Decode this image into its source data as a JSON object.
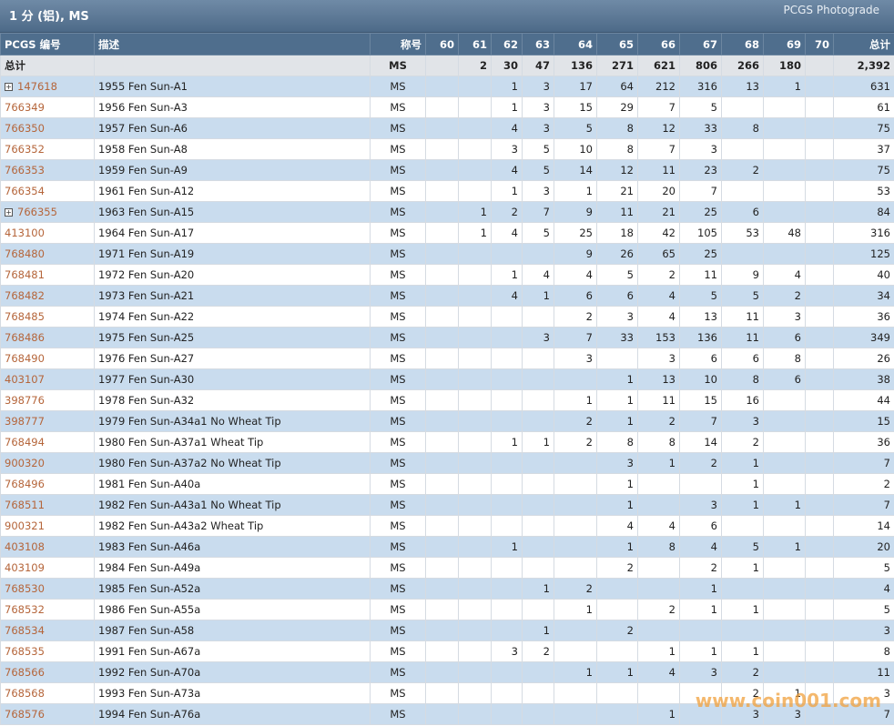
{
  "header": {
    "title": "1 分 (铝), MS",
    "subtitle": "PCGS Photograde"
  },
  "table": {
    "columns": [
      "PCGS 编号",
      "描述",
      "称号",
      "60",
      "61",
      "62",
      "63",
      "64",
      "65",
      "66",
      "67",
      "68",
      "69",
      "70",
      "总计"
    ],
    "total": [
      "总计",
      null,
      "MS",
      null,
      2,
      30,
      47,
      136,
      271,
      621,
      806,
      266,
      180,
      null,
      "2,392"
    ],
    "rows": [
      [
        "147618",
        "1955 Fen Sun-A1",
        "MS",
        null,
        null,
        1,
        3,
        17,
        64,
        212,
        316,
        13,
        1,
        null,
        631
      ],
      [
        "766349",
        "1956 Fen Sun-A3",
        "MS",
        null,
        null,
        1,
        3,
        15,
        29,
        7,
        5,
        null,
        null,
        null,
        61
      ],
      [
        "766350",
        "1957 Fen Sun-A6",
        "MS",
        null,
        null,
        4,
        3,
        5,
        8,
        12,
        33,
        8,
        null,
        null,
        75
      ],
      [
        "766352",
        "1958 Fen Sun-A8",
        "MS",
        null,
        null,
        3,
        5,
        10,
        8,
        7,
        3,
        null,
        null,
        null,
        37
      ],
      [
        "766353",
        "1959 Fen Sun-A9",
        "MS",
        null,
        null,
        4,
        5,
        14,
        12,
        11,
        23,
        2,
        null,
        null,
        75
      ],
      [
        "766354",
        "1961 Fen Sun-A12",
        "MS",
        null,
        null,
        1,
        3,
        1,
        21,
        20,
        7,
        null,
        null,
        null,
        53
      ],
      [
        "766355",
        "1963 Fen Sun-A15",
        "MS",
        null,
        1,
        2,
        7,
        9,
        11,
        21,
        25,
        6,
        null,
        null,
        84
      ],
      [
        "413100",
        "1964 Fen Sun-A17",
        "MS",
        null,
        1,
        4,
        5,
        25,
        18,
        42,
        105,
        53,
        48,
        null,
        316
      ],
      [
        "768480",
        "1971 Fen Sun-A19",
        "MS",
        null,
        null,
        null,
        null,
        9,
        26,
        65,
        25,
        null,
        null,
        null,
        125
      ],
      [
        "768481",
        "1972 Fen Sun-A20",
        "MS",
        null,
        null,
        1,
        4,
        4,
        5,
        2,
        11,
        9,
        4,
        null,
        40
      ],
      [
        "768482",
        "1973 Fen Sun-A21",
        "MS",
        null,
        null,
        4,
        1,
        6,
        6,
        4,
        5,
        5,
        2,
        null,
        34
      ],
      [
        "768485",
        "1974 Fen Sun-A22",
        "MS",
        null,
        null,
        null,
        null,
        2,
        3,
        4,
        13,
        11,
        3,
        null,
        36
      ],
      [
        "768486",
        "1975 Fen Sun-A25",
        "MS",
        null,
        null,
        null,
        3,
        7,
        33,
        153,
        136,
        11,
        6,
        null,
        349
      ],
      [
        "768490",
        "1976 Fen Sun-A27",
        "MS",
        null,
        null,
        null,
        null,
        3,
        null,
        3,
        6,
        6,
        8,
        null,
        26
      ],
      [
        "403107",
        "1977 Fen Sun-A30",
        "MS",
        null,
        null,
        null,
        null,
        null,
        1,
        13,
        10,
        8,
        6,
        null,
        38
      ],
      [
        "398776",
        "1978 Fen Sun-A32",
        "MS",
        null,
        null,
        null,
        null,
        1,
        1,
        11,
        15,
        16,
        null,
        null,
        44
      ],
      [
        "398777",
        "1979 Fen Sun-A34a1 No Wheat Tip",
        "MS",
        null,
        null,
        null,
        null,
        2,
        1,
        2,
        7,
        3,
        null,
        null,
        15
      ],
      [
        "768494",
        "1980 Fen Sun-A37a1 Wheat Tip",
        "MS",
        null,
        null,
        1,
        1,
        2,
        8,
        8,
        14,
        2,
        null,
        null,
        36
      ],
      [
        "900320",
        "1980 Fen Sun-A37a2 No Wheat Tip",
        "MS",
        null,
        null,
        null,
        null,
        null,
        3,
        1,
        2,
        1,
        null,
        null,
        7
      ],
      [
        "768496",
        "1981 Fen Sun-A40a",
        "MS",
        null,
        null,
        null,
        null,
        null,
        1,
        null,
        null,
        1,
        null,
        null,
        2
      ],
      [
        "768511",
        "1982 Fen Sun-A43a1 No Wheat Tip",
        "MS",
        null,
        null,
        null,
        null,
        null,
        1,
        null,
        3,
        1,
        1,
        null,
        7
      ],
      [
        "900321",
        "1982 Fen Sun-A43a2 Wheat Tip",
        "MS",
        null,
        null,
        null,
        null,
        null,
        4,
        4,
        6,
        null,
        null,
        null,
        14
      ],
      [
        "403108",
        "1983 Fen Sun-A46a",
        "MS",
        null,
        null,
        1,
        null,
        null,
        1,
        8,
        4,
        5,
        1,
        null,
        20
      ],
      [
        "403109",
        "1984 Fen Sun-A49a",
        "MS",
        null,
        null,
        null,
        null,
        null,
        2,
        null,
        2,
        1,
        null,
        null,
        5
      ],
      [
        "768530",
        "1985 Fen Sun-A52a",
        "MS",
        null,
        null,
        null,
        1,
        2,
        null,
        null,
        1,
        null,
        null,
        null,
        4
      ],
      [
        "768532",
        "1986 Fen Sun-A55a",
        "MS",
        null,
        null,
        null,
        null,
        1,
        null,
        2,
        1,
        1,
        null,
        null,
        5
      ],
      [
        "768534",
        "1987 Fen Sun-A58",
        "MS",
        null,
        null,
        null,
        1,
        null,
        2,
        null,
        null,
        null,
        null,
        null,
        3
      ],
      [
        "768535",
        "1991 Fen Sun-A67a",
        "MS",
        null,
        null,
        3,
        2,
        null,
        null,
        1,
        1,
        1,
        null,
        null,
        8
      ],
      [
        "768566",
        "1992 Fen Sun-A70a",
        "MS",
        null,
        null,
        null,
        null,
        1,
        1,
        4,
        3,
        2,
        null,
        null,
        11
      ],
      [
        "768568",
        "1993 Fen Sun-A73a",
        "MS",
        null,
        null,
        null,
        null,
        null,
        null,
        null,
        null,
        2,
        1,
        null,
        3
      ],
      [
        "768576",
        "1994 Fen Sun-A76a",
        "MS",
        null,
        null,
        null,
        null,
        null,
        null,
        1,
        null,
        3,
        3,
        null,
        7
      ]
    ]
  },
  "watermark": "www.coin001.com"
}
